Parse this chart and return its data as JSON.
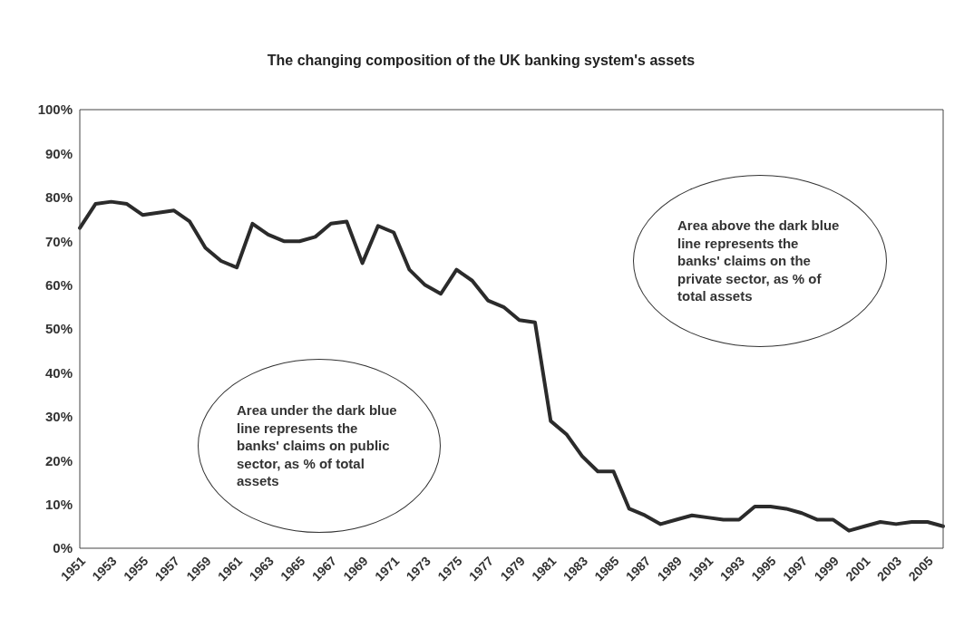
{
  "chart_data": {
    "type": "line",
    "title": "The changing composition of the UK banking system's assets",
    "categories": [
      "1951",
      null,
      "1953",
      null,
      "1955",
      null,
      "1957",
      null,
      "1959",
      null,
      "1961",
      null,
      "1963",
      null,
      "1965",
      null,
      "1967",
      null,
      "1969",
      null,
      "1971",
      null,
      "1973",
      null,
      "1975",
      null,
      "1977",
      null,
      "1979",
      null,
      "1981",
      null,
      "1983",
      null,
      "1985",
      null,
      "1987",
      null,
      "1989",
      null,
      "1991",
      null,
      "1993",
      null,
      "1995",
      null,
      "1997",
      null,
      "1999",
      null,
      "2001",
      null,
      "2003",
      null,
      "2005",
      null
    ],
    "series": [
      {
        "color": "#2b2b2b",
        "values": [
          73,
          78.5,
          79,
          78.5,
          76,
          76.5,
          77,
          74.5,
          68.5,
          65.5,
          64,
          74,
          71.5,
          70,
          70,
          71,
          74,
          74.5,
          65,
          73.5,
          72,
          63.5,
          60,
          58,
          63.5,
          61,
          56.5,
          55,
          52,
          51.5,
          29,
          26,
          21,
          17.5,
          17.5,
          9,
          7.5,
          5.5,
          6.5,
          7.5,
          7,
          6.5,
          6.5,
          9.5,
          9.5,
          9,
          8,
          6.5,
          6.5,
          4,
          5,
          6,
          5.5,
          6,
          6,
          5
        ]
      }
    ],
    "ylim": [
      0,
      100
    ],
    "yticks": [
      {
        "value": 0,
        "label": "0%"
      },
      {
        "value": 10,
        "label": "10%"
      },
      {
        "value": 20,
        "label": "20%"
      },
      {
        "value": 30,
        "label": "30%"
      },
      {
        "value": 40,
        "label": "40%"
      },
      {
        "value": 50,
        "label": "50%"
      },
      {
        "value": 60,
        "label": "60%"
      },
      {
        "value": 70,
        "label": "70%"
      },
      {
        "value": 80,
        "label": "80%"
      },
      {
        "value": 90,
        "label": "90%"
      },
      {
        "value": 100,
        "label": "100%"
      }
    ],
    "annotations": [
      "Area above the dark blue line represents the banks' claims on the private sector, as % of total assets",
      "Area under the dark blue line represents the banks' claims on public sector, as % of total assets"
    ],
    "grid": false,
    "marker": "none",
    "line_style": "solid"
  }
}
